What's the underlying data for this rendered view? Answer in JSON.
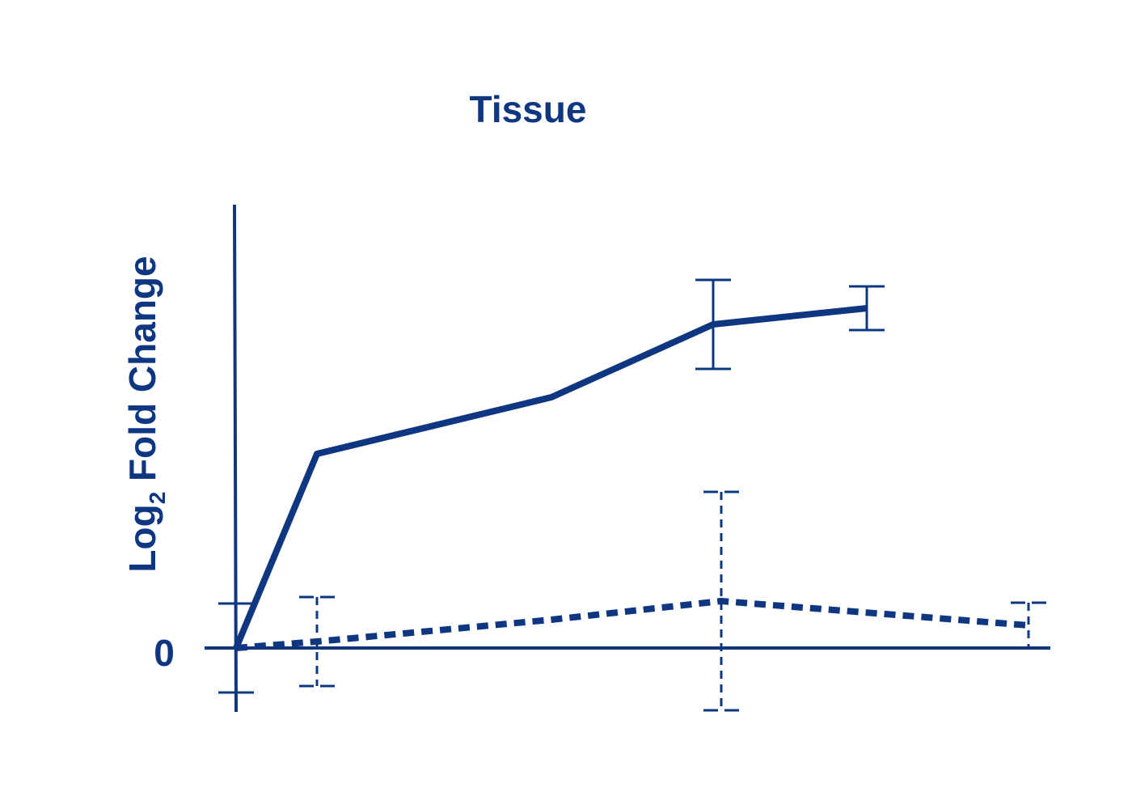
{
  "chart_data": {
    "type": "line",
    "title": "Tissue",
    "ylabel": {
      "main": "Log",
      "subscript": "2",
      "rest": " Fold Change"
    },
    "y_ticks": [
      "0"
    ],
    "xlim": [
      0,
      10
    ],
    "ylim": [
      -0.9,
      5.0
    ],
    "grid": false,
    "series": [
      {
        "style": "solid",
        "x": [
          0,
          1,
          3.9,
          5.9,
          7.8
        ],
        "y": [
          0,
          2.4,
          3.1,
          4.0,
          4.2
        ],
        "error": [
          0.55,
          null,
          null,
          0.55,
          0.27
        ]
      },
      {
        "style": "dashed",
        "x": [
          0,
          1,
          3.9,
          6.0,
          9.8
        ],
        "y": [
          0,
          0.08,
          0.35,
          0.58,
          0.28
        ],
        "error": [
          null,
          0.55,
          null,
          1.35,
          0.28
        ]
      }
    ],
    "color": "#0f3680"
  }
}
